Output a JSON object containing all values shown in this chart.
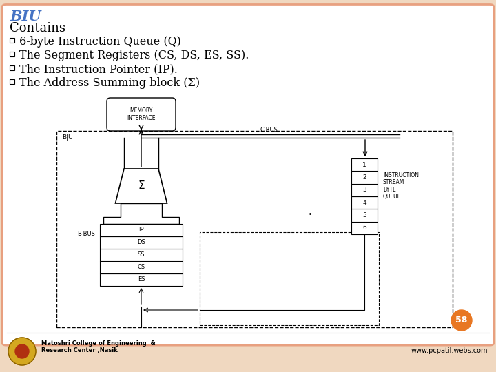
{
  "title": "BIU",
  "title_color": "#4472C4",
  "bg_color": "#FFFFFF",
  "border_color": "#E8A080",
  "slide_bg": "#F0D8C0",
  "text_color": "#000000",
  "contains_label": "Contains",
  "bullets": [
    "6-byte Instruction Queue (Q)",
    "The Segment Registers (CS, DS, ES, SS).",
    "The Instruction Pointer (IP).",
    "The Address Summing block (Σ)"
  ],
  "footer_college": "Matoshri College of Engineering  &\nResearch Center ,Nasik",
  "footer_website": "www.pcpatil.webs.com",
  "slide_number": "58",
  "slide_number_bg": "#E87722",
  "queue_labels": [
    "6",
    "5",
    "4",
    "3",
    "2",
    "1"
  ],
  "seg_labels": [
    "ES",
    "CS",
    "SS",
    "DS",
    "IP"
  ]
}
